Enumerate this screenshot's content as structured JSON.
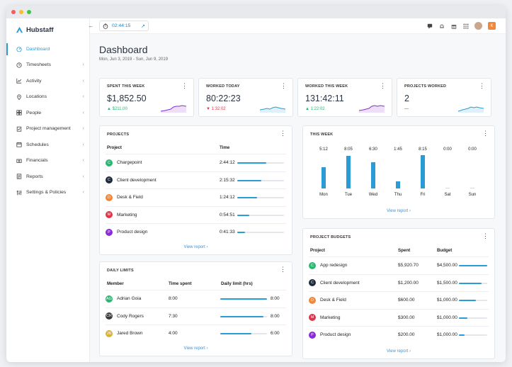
{
  "app": {
    "name": "Hubstaff"
  },
  "colors": {
    "accent": "#2b9bd6",
    "up": "#2bb673",
    "down": "#e0344a",
    "brand_orange": "#f0873a"
  },
  "timer": {
    "value": "02:44:15"
  },
  "user": {
    "initial": "K"
  },
  "sidebar": {
    "items": [
      {
        "label": "Dashboard",
        "icon": "dashboard-icon",
        "active": true
      },
      {
        "label": "Timesheets",
        "icon": "clock-icon"
      },
      {
        "label": "Activity",
        "icon": "activity-chart-icon"
      },
      {
        "label": "Locations",
        "icon": "location-pin-icon"
      },
      {
        "label": "People",
        "icon": "people-icon"
      },
      {
        "label": "Project management",
        "icon": "clipboard-icon"
      },
      {
        "label": "Schedules",
        "icon": "calendar-icon"
      },
      {
        "label": "Financials",
        "icon": "money-icon"
      },
      {
        "label": "Reports",
        "icon": "report-icon"
      },
      {
        "label": "Settings & Policies",
        "icon": "sliders-icon"
      }
    ]
  },
  "page": {
    "title": "Dashboard",
    "date_range": "Mon, Jun 3, 2019 - Sun, Jun 9, 2019"
  },
  "stats": [
    {
      "label": "SPENT THIS WEEK",
      "value": "$1,852.50",
      "change": "▲ $211.00",
      "trend": "up"
    },
    {
      "label": "WORKED TODAY",
      "value": "80:22:23",
      "change": "▼ 1:32:02",
      "trend": "down"
    },
    {
      "label": "WORKED THIS WEEK",
      "value": "131:42:11",
      "change": "▲ 1:22:02",
      "trend": "up"
    },
    {
      "label": "PROJECTS WORKED",
      "value": "2",
      "change": "—",
      "trend": "flat"
    }
  ],
  "projects": {
    "title": "PROJECTS",
    "col_project": "Project",
    "col_time": "Time",
    "link": "View report  ›",
    "rows": [
      {
        "initial": "C",
        "name": "Chargepoint",
        "time": "2:44:12",
        "pct": 0.62,
        "color": "#2bb673"
      },
      {
        "initial": "C",
        "name": "Client development",
        "time": "2:15:32",
        "pct": 0.52,
        "color": "#1f2b3d"
      },
      {
        "initial": "D",
        "name": "Desk & Field",
        "time": "1:24:12",
        "pct": 0.42,
        "color": "#f0873a"
      },
      {
        "initial": "M",
        "name": "Marketing",
        "time": "0:54:51",
        "pct": 0.26,
        "color": "#e0344a"
      },
      {
        "initial": "P",
        "name": "Product design",
        "time": "0:41:33",
        "pct": 0.17,
        "color": "#8a2bd6"
      }
    ]
  },
  "this_week": {
    "title": "THIS WEEK",
    "link": "View report  ›"
  },
  "chart_data": {
    "type": "bar",
    "categories": [
      "Mon",
      "Tue",
      "Wed",
      "Thu",
      "Fri",
      "Sat",
      "Sun"
    ],
    "labels": [
      "5:12",
      "8:05",
      "6:30",
      "1:45",
      "8:15",
      "0:00",
      "0:00"
    ],
    "values": [
      5.2,
      8.08,
      6.5,
      1.75,
      8.25,
      0,
      0
    ],
    "ylim": [
      0,
      8.25
    ]
  },
  "daily_limits": {
    "title": "DAILY LIMITS",
    "col_member": "Member",
    "col_time": "Time spent",
    "col_limit": "Daily limit (hrs)",
    "link": "View report  ›",
    "rows": [
      {
        "initial": "AG",
        "name": "Adrian Goia",
        "time": "8:00",
        "limit": "8:00",
        "pct": 1.0,
        "color": "#2bb673"
      },
      {
        "initial": "CR",
        "name": "Cody Rogers",
        "time": "7:30",
        "limit": "8:00",
        "pct": 0.92,
        "color": "#3a3a3a"
      },
      {
        "initial": "JB",
        "name": "Jared Brown",
        "time": "4:00",
        "limit": "6:00",
        "pct": 0.67,
        "color": "#d7b23a"
      }
    ]
  },
  "budgets": {
    "title": "PROJECT BUDGETS",
    "col_project": "Project",
    "col_spent": "Spent",
    "col_budget": "Budget",
    "link": "View report  ›",
    "rows": [
      {
        "initial": "C",
        "name": "App redesign",
        "spent": "$5,920.70",
        "budget": "$4,500.00",
        "pct": 1.0,
        "color": "#2bb673"
      },
      {
        "initial": "C",
        "name": "Client development",
        "spent": "$1,200.00",
        "budget": "$1,500.00",
        "pct": 0.8,
        "color": "#1f2b3d"
      },
      {
        "initial": "D",
        "name": "Desk & Field",
        "spent": "$600.00",
        "budget": "$1,000.00",
        "pct": 0.6,
        "color": "#f0873a"
      },
      {
        "initial": "M",
        "name": "Marketing",
        "spent": "$300.00",
        "budget": "$1,000.00",
        "pct": 0.3,
        "color": "#e0344a"
      },
      {
        "initial": "P",
        "name": "Product design",
        "spent": "$200.00",
        "budget": "$1,000.00",
        "pct": 0.2,
        "color": "#8a2bd6"
      }
    ]
  }
}
